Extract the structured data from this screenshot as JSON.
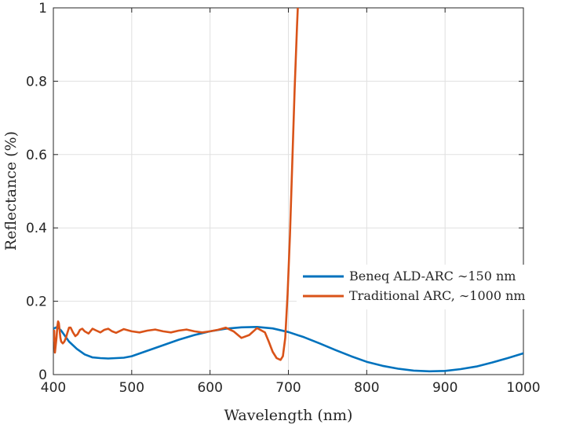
{
  "chart_data": {
    "type": "line",
    "xlabel": "Wavelength (nm)",
    "ylabel": "Reflectance (%)",
    "xlim": [
      400,
      1000
    ],
    "ylim": [
      0,
      1
    ],
    "xticks": [
      400,
      500,
      600,
      700,
      800,
      900,
      1000
    ],
    "xtick_labels": [
      "400",
      "500",
      "600",
      "700",
      "800",
      "900",
      "1000"
    ],
    "yticks": [
      0,
      0.2,
      0.4,
      0.6,
      0.8,
      1
    ],
    "ytick_labels": [
      "0",
      "0.2",
      "0.4",
      "0.6",
      "0.8",
      "1"
    ],
    "grid": true,
    "legend_position": "right",
    "series": [
      {
        "name": "Beneq ALD-ARC ~150 nm",
        "color": "#0072BD",
        "x": [
          400,
          405,
          410,
          415,
          420,
          430,
          440,
          450,
          460,
          470,
          480,
          490,
          500,
          520,
          540,
          560,
          580,
          600,
          620,
          640,
          660,
          680,
          700,
          720,
          740,
          760,
          780,
          800,
          820,
          840,
          860,
          880,
          900,
          920,
          940,
          960,
          980,
          1000
        ],
        "y": [
          0.125,
          0.13,
          0.12,
          0.105,
          0.09,
          0.07,
          0.055,
          0.047,
          0.045,
          0.044,
          0.045,
          0.046,
          0.05,
          0.065,
          0.08,
          0.095,
          0.108,
          0.118,
          0.125,
          0.129,
          0.13,
          0.126,
          0.116,
          0.102,
          0.085,
          0.067,
          0.05,
          0.035,
          0.024,
          0.016,
          0.011,
          0.009,
          0.01,
          0.015,
          0.022,
          0.033,
          0.045,
          0.058
        ]
      },
      {
        "name": "Traditional ARC, ~1000 nm",
        "color": "#D95319",
        "x": [
          400,
          401,
          402,
          403,
          404,
          405,
          406,
          407,
          408,
          409,
          410,
          412,
          414,
          416,
          418,
          420,
          422,
          425,
          428,
          431,
          434,
          437,
          440,
          445,
          450,
          455,
          460,
          465,
          470,
          475,
          480,
          490,
          500,
          510,
          520,
          530,
          540,
          550,
          560,
          570,
          580,
          590,
          600,
          610,
          620,
          630,
          640,
          650,
          660,
          670,
          675,
          680,
          685,
          690,
          693,
          696,
          699,
          702,
          705,
          708,
          711,
          712
        ],
        "y": [
          0.09,
          0.12,
          0.06,
          0.08,
          0.1,
          0.13,
          0.145,
          0.14,
          0.12,
          0.1,
          0.09,
          0.085,
          0.09,
          0.1,
          0.115,
          0.128,
          0.128,
          0.115,
          0.105,
          0.11,
          0.122,
          0.125,
          0.118,
          0.112,
          0.125,
          0.12,
          0.115,
          0.122,
          0.125,
          0.118,
          0.114,
          0.124,
          0.118,
          0.115,
          0.12,
          0.123,
          0.118,
          0.115,
          0.12,
          0.123,
          0.118,
          0.115,
          0.118,
          0.122,
          0.128,
          0.118,
          0.1,
          0.108,
          0.127,
          0.115,
          0.09,
          0.062,
          0.045,
          0.04,
          0.05,
          0.1,
          0.22,
          0.38,
          0.58,
          0.78,
          0.95,
          1.0
        ]
      }
    ]
  },
  "legend": {
    "series_a_label": "Beneq ALD-ARC ∼150 nm",
    "series_b_label": "Traditional ARC, ∼1000 nm"
  }
}
